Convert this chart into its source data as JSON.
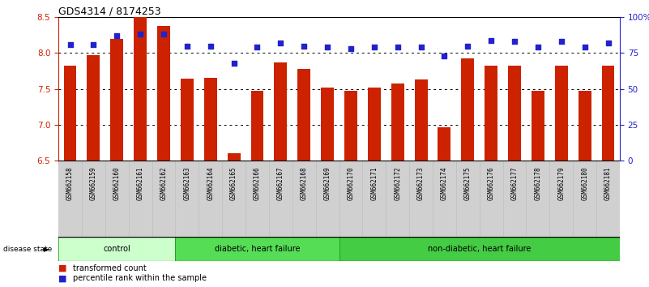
{
  "title": "GDS4314 / 8174253",
  "samples": [
    "GSM662158",
    "GSM662159",
    "GSM662160",
    "GSM662161",
    "GSM662162",
    "GSM662163",
    "GSM662164",
    "GSM662165",
    "GSM662166",
    "GSM662167",
    "GSM662168",
    "GSM662169",
    "GSM662170",
    "GSM662171",
    "GSM662172",
    "GSM662173",
    "GSM662174",
    "GSM662175",
    "GSM662176",
    "GSM662177",
    "GSM662178",
    "GSM662179",
    "GSM662180",
    "GSM662181"
  ],
  "bar_values": [
    7.82,
    7.97,
    8.2,
    8.5,
    8.38,
    7.64,
    7.65,
    6.6,
    7.47,
    7.87,
    7.78,
    7.52,
    7.47,
    7.52,
    7.58,
    7.63,
    6.97,
    7.93,
    7.83,
    7.82,
    7.47,
    7.82,
    7.47,
    7.82
  ],
  "dot_values": [
    81,
    81,
    87,
    88,
    88,
    80,
    80,
    68,
    79,
    82,
    80,
    79,
    78,
    79,
    79,
    79,
    73,
    80,
    84,
    83,
    79,
    83,
    79,
    82
  ],
  "bar_color": "#cc2200",
  "dot_color": "#2222cc",
  "ylim_left": [
    6.5,
    8.5
  ],
  "ylim_right": [
    0,
    100
  ],
  "yticks_left": [
    6.5,
    7.0,
    7.5,
    8.0,
    8.5
  ],
  "ytick_labels_right": [
    "0",
    "25",
    "50",
    "75",
    "100%"
  ],
  "grid_values": [
    7.0,
    7.5,
    8.0
  ],
  "groups": [
    {
      "label": "control",
      "start": 0,
      "end": 4
    },
    {
      "label": "diabetic, heart failure",
      "start": 5,
      "end": 11
    },
    {
      "label": "non-diabetic, heart failure",
      "start": 12,
      "end": 23
    }
  ],
  "group_colors": [
    "#ccffcc",
    "#55dd55",
    "#44cc44"
  ],
  "group_edge_color": "#229922",
  "disease_state_label": "disease state",
  "legend_bar_label": "transformed count",
  "legend_dot_label": "percentile rank within the sample",
  "background_color": "#ffffff",
  "tick_cell_color": "#d0d0d0",
  "tick_cell_edge": "#bbbbbb"
}
